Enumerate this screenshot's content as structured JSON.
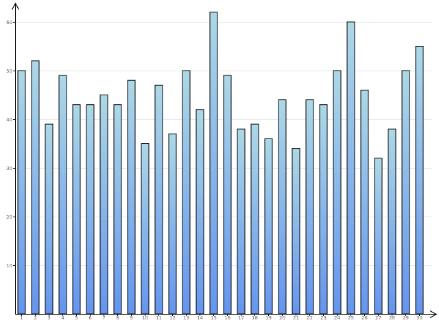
{
  "chart_data": {
    "type": "bar",
    "title": "",
    "xlabel": "",
    "ylabel": "",
    "categories": [
      "1",
      "2",
      "3",
      "4",
      "5",
      "6",
      "7",
      "8",
      "9",
      "10",
      "11",
      "12",
      "13",
      "14",
      "15",
      "16",
      "17",
      "18",
      "19",
      "20",
      "21",
      "22",
      "23",
      "24",
      "25",
      "26",
      "27",
      "28",
      "29",
      "30"
    ],
    "values": [
      50,
      52,
      39,
      49,
      43,
      43,
      45,
      43,
      48,
      35,
      47,
      37,
      50,
      42,
      62,
      49,
      38,
      39,
      36,
      44,
      34,
      44,
      43,
      50,
      60,
      46,
      32,
      38,
      50,
      55
    ],
    "ylim": [
      0,
      65
    ],
    "yticks": [
      10,
      20,
      30,
      40,
      50,
      60
    ],
    "ytick_labels": [
      "10",
      "20",
      "30",
      "40",
      "50",
      "60"
    ],
    "grid": "horizontal",
    "legend": "none",
    "colors": {
      "bar_top": "#add8e6",
      "bar_bottom": "#6495ed",
      "bar_stroke": "#000000",
      "grid": "#e6e6e6",
      "axis": "#000000",
      "tick_text": "#666666"
    }
  }
}
